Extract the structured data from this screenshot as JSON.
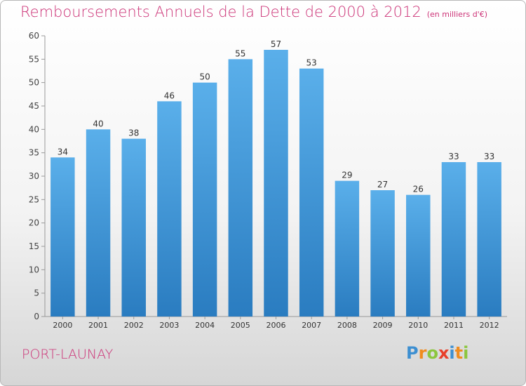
{
  "header": {
    "title": "Remboursements Annuels de la Dette de 2000 à 2012",
    "unit_note": "(en milliers d'€)"
  },
  "footer": {
    "place": "PORT-LAUNAY",
    "logo": {
      "letters": [
        "P",
        "r",
        "o",
        "x",
        "i",
        "t",
        "i"
      ]
    }
  },
  "chart_data": {
    "type": "bar",
    "title": "Remboursements Annuels de la Dette de 2000 à 2012",
    "subtitle": "(en milliers d'€)",
    "categories": [
      "2000",
      "2001",
      "2002",
      "2003",
      "2004",
      "2005",
      "2006",
      "2007",
      "2008",
      "2009",
      "2010",
      "2011",
      "2012"
    ],
    "values": [
      34,
      40,
      38,
      46,
      50,
      55,
      57,
      53,
      29,
      27,
      26,
      33,
      33
    ],
    "ylim": [
      0,
      60
    ],
    "yticks": [
      0,
      5,
      10,
      15,
      20,
      25,
      30,
      35,
      40,
      45,
      50,
      55,
      60
    ],
    "grid": false,
    "bar_color_top": "#5aafea",
    "bar_color_bottom": "#2a7cc0"
  },
  "colors": {
    "title": "#cc3377",
    "logo": [
      "#3d8fd1",
      "#f08c1e",
      "#8cc63e",
      "#e8402b",
      "#3d8fd1",
      "#f08c1e",
      "#8cc63e"
    ]
  }
}
